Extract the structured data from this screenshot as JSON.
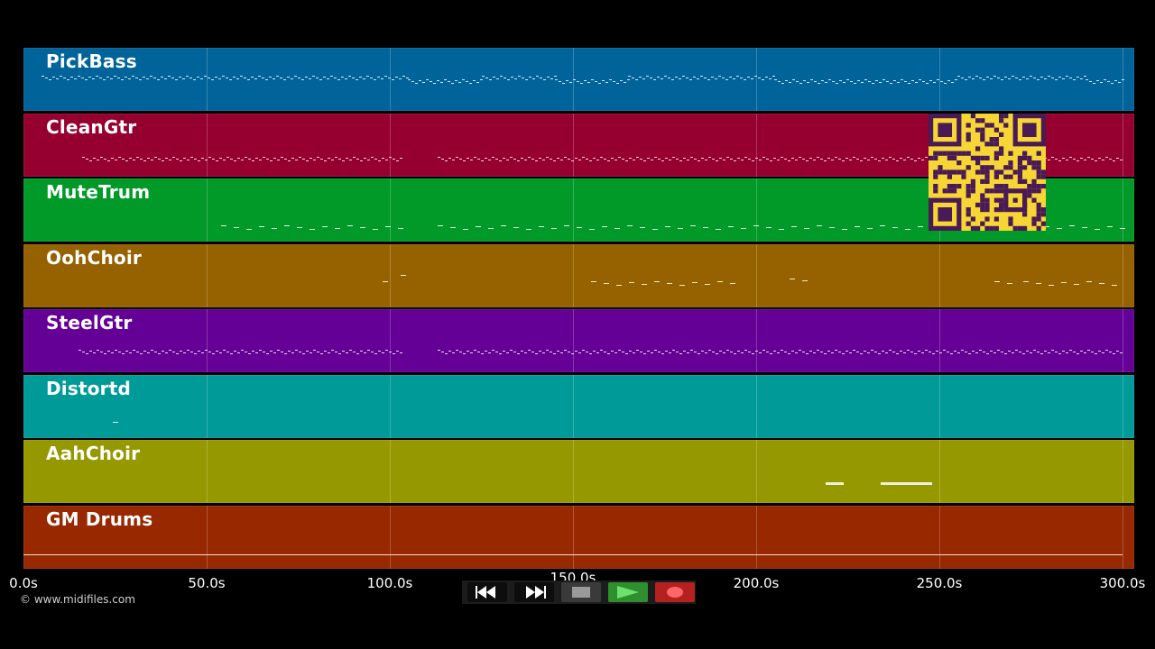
{
  "tracks": [
    {
      "name": "PickBass",
      "color": "#00639a",
      "notes": [
        [
          5,
          105,
          0.3
        ],
        [
          105,
          125,
          0.35
        ],
        [
          125,
          145,
          0.3
        ],
        [
          145,
          165,
          0.35
        ],
        [
          165,
          205,
          0.3
        ],
        [
          205,
          255,
          0.35
        ],
        [
          255,
          290,
          0.3
        ],
        [
          290,
          300,
          0.35
        ]
      ],
      "density": "line"
    },
    {
      "name": "CleanGtr",
      "color": "#960030",
      "notes": [
        [
          16,
          103,
          0.55
        ],
        [
          113,
          300,
          0.55
        ]
      ],
      "density": "line"
    },
    {
      "name": "MuteTrum",
      "color": "#019a28",
      "notes": [
        [
          54,
          103,
          0.6
        ],
        [
          113,
          300,
          0.6
        ]
      ],
      "density": "sparse"
    },
    {
      "name": "OohChoir",
      "color": "#966200",
      "notes": [
        [
          98,
          100,
          0.45
        ],
        [
          103,
          105,
          0.35
        ],
        [
          155,
          195,
          0.45
        ],
        [
          209,
          215,
          0.4
        ],
        [
          265,
          270,
          0.45
        ],
        [
          273,
          300,
          0.45
        ]
      ],
      "density": "sparse"
    },
    {
      "name": "SteelGtr",
      "color": "#650096",
      "notes": [
        [
          15,
          103,
          0.5
        ],
        [
          113,
          300,
          0.5
        ]
      ],
      "density": "line"
    },
    {
      "name": "Distortd",
      "color": "#009a99",
      "notes": [
        [
          24.5,
          25.2,
          0.6
        ]
      ],
      "density": "sparse"
    },
    {
      "name": "AahChoir",
      "color": "#969800",
      "notes": [
        [
          219,
          224,
          0.5
        ],
        [
          234,
          248,
          0.5
        ]
      ],
      "density": "solid"
    },
    {
      "name": "GM Drums",
      "color": "#972800",
      "notes": [
        [
          0,
          300,
          0.6
        ]
      ],
      "density": "solid"
    }
  ],
  "axis": {
    "unit": "s",
    "ticks": [
      "0.0s",
      "50.0s",
      "100.0s",
      "150.0s",
      "200.0s",
      "250.0s",
      "300.0s"
    ],
    "max_seconds": 300
  },
  "copyright": "© www.midifiles.com",
  "transport": {
    "rewind_icon": "rewind-icon",
    "forward_icon": "fast-forward-icon",
    "stop_icon": "stop-icon",
    "play_icon": "play-icon",
    "record_icon": "record-icon",
    "play_color": "#2f8f2f",
    "record_color": "#b52020"
  },
  "overlay": {
    "qr_icon": "qr-code-icon",
    "qr_color": "#f5d634"
  }
}
